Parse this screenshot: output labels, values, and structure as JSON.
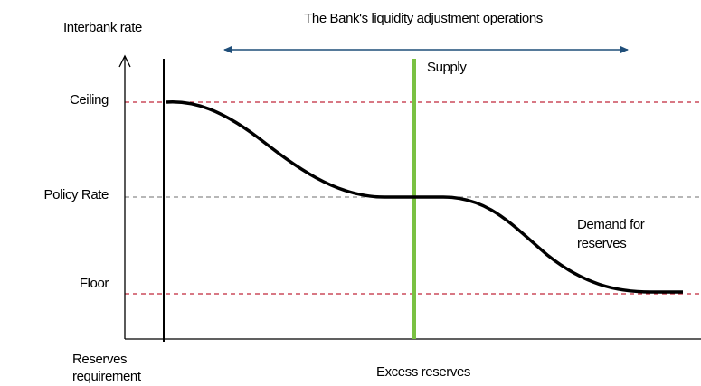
{
  "title": "The Bank's liquidity adjustment operations",
  "y_axis_label": "Interbank rate",
  "x_axis_label": "Excess reserves",
  "levels": {
    "ceiling": "Ceiling",
    "policy": "Policy Rate",
    "floor": "Floor"
  },
  "supply_label": "Supply",
  "demand_label": [
    "Demand for",
    "reserves"
  ],
  "reserves_requirement_label": [
    "Reserves",
    "requirement"
  ]
}
